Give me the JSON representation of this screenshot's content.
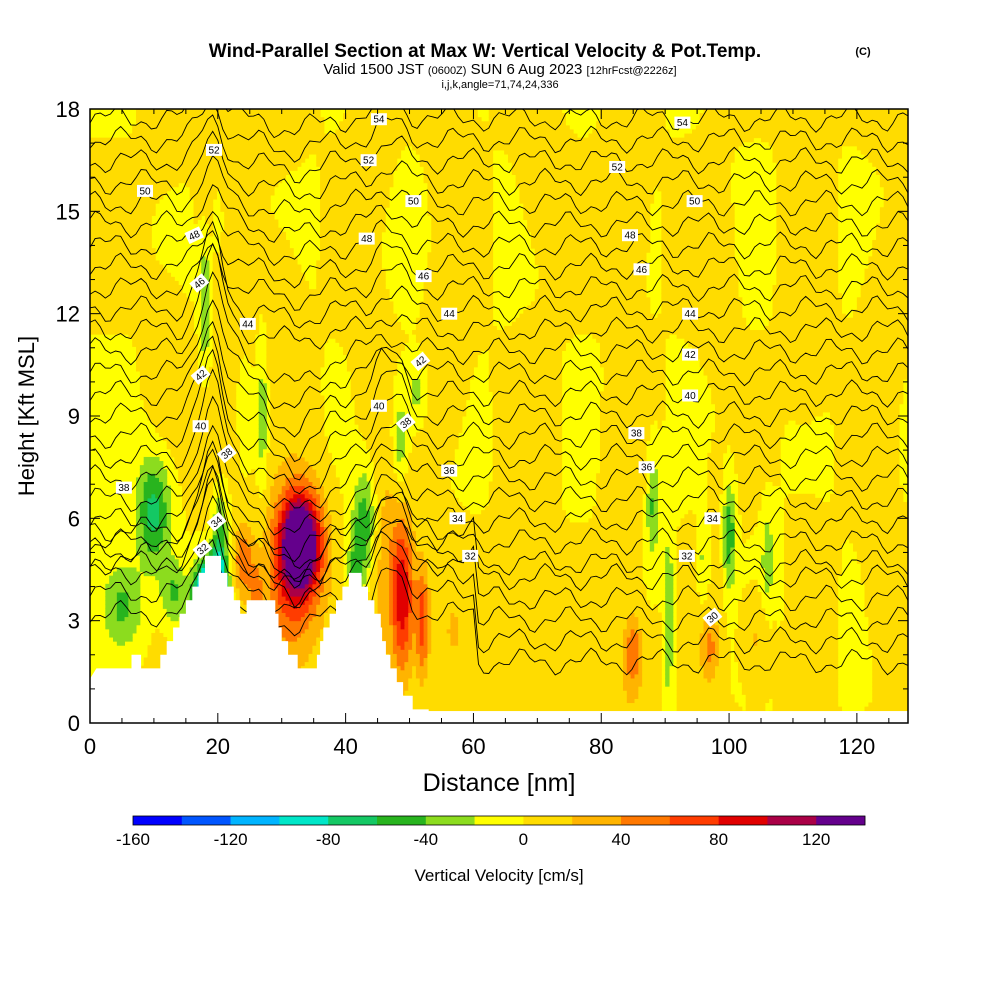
{
  "chart_data": {
    "type": "heatmap",
    "title": "Wind-Parallel Section at Max W: Vertical Velocity & Pot.Temp.",
    "title_mark": "(C)",
    "subtitle_main": "Valid 1500 JST",
    "subtitle_z": "(0600Z)",
    "subtitle_date": "SUN 6 Aug 2023",
    "subtitle_fcst": "[12hrFcst@2226z]",
    "subtitle2": "i,j,k,angle=71,74,24,336",
    "xlabel": "Distance [nm]",
    "ylabel": "Height [Kft MSL]",
    "xlim": [
      0,
      128
    ],
    "ylim": [
      0,
      18
    ],
    "x_ticks": [
      "0",
      "20",
      "40",
      "60",
      "80",
      "100",
      "120"
    ],
    "y_ticks": [
      "0",
      "3",
      "6",
      "9",
      "12",
      "15",
      "18"
    ],
    "colorbar": {
      "label": "Vertical Velocity [cm/s]",
      "range": [
        -160,
        140
      ],
      "tick_labels": [
        "-160",
        "-120",
        "-80",
        "-40",
        "0",
        "40",
        "80",
        "120"
      ],
      "colors": [
        "#0000ff",
        "#0055ff",
        "#00b4ff",
        "#00e6c8",
        "#14c864",
        "#28b41e",
        "#8cdc1e",
        "#ffff00",
        "#ffdc00",
        "#ffb400",
        "#ff7800",
        "#ff3c00",
        "#e10000",
        "#aa0046",
        "#64008c"
      ]
    },
    "theta_labels": [
      {
        "text": "54",
        "x": 45.2,
        "y": 17.7,
        "rot": 0
      },
      {
        "text": "54",
        "x": 92.7,
        "y": 17.6,
        "rot": 0
      },
      {
        "text": "52",
        "x": 19.4,
        "y": 16.8,
        "rot": 0
      },
      {
        "text": "52",
        "x": 43.6,
        "y": 16.5,
        "rot": 0
      },
      {
        "text": "52",
        "x": 82.5,
        "y": 16.3,
        "rot": 0
      },
      {
        "text": "50",
        "x": 8.6,
        "y": 15.6,
        "rot": 0
      },
      {
        "text": "50",
        "x": 50.6,
        "y": 15.3,
        "rot": 0
      },
      {
        "text": "50",
        "x": 94.6,
        "y": 15.3,
        "rot": 0
      },
      {
        "text": "48",
        "x": 16.3,
        "y": 14.3,
        "rot": -25
      },
      {
        "text": "48",
        "x": 43.3,
        "y": 14.2,
        "rot": 0
      },
      {
        "text": "48",
        "x": 84.5,
        "y": 14.3,
        "rot": 0
      },
      {
        "text": "46",
        "x": 17.1,
        "y": 12.9,
        "rot": -40
      },
      {
        "text": "46",
        "x": 52.2,
        "y": 13.1,
        "rot": 0
      },
      {
        "text": "46",
        "x": 86.3,
        "y": 13.3,
        "rot": 0
      },
      {
        "text": "44",
        "x": 24.7,
        "y": 11.7,
        "rot": 0
      },
      {
        "text": "44",
        "x": 56.2,
        "y": 12.0,
        "rot": 0
      },
      {
        "text": "44",
        "x": 93.9,
        "y": 12.0,
        "rot": 0
      },
      {
        "text": "42",
        "x": 17.3,
        "y": 10.2,
        "rot": -40
      },
      {
        "text": "42",
        "x": 51.7,
        "y": 10.6,
        "rot": -40
      },
      {
        "text": "42",
        "x": 93.9,
        "y": 10.8,
        "rot": 0
      },
      {
        "text": "40",
        "x": 17.3,
        "y": 8.7,
        "rot": 0
      },
      {
        "text": "40",
        "x": 45.2,
        "y": 9.3,
        "rot": 0
      },
      {
        "text": "40",
        "x": 93.9,
        "y": 9.6,
        "rot": 0
      },
      {
        "text": "38",
        "x": 5.3,
        "y": 6.9,
        "rot": 0
      },
      {
        "text": "38",
        "x": 21.4,
        "y": 7.9,
        "rot": -40
      },
      {
        "text": "38",
        "x": 49.4,
        "y": 8.8,
        "rot": -40
      },
      {
        "text": "38",
        "x": 85.5,
        "y": 8.5,
        "rot": 0
      },
      {
        "text": "36",
        "x": 56.2,
        "y": 7.4,
        "rot": 0
      },
      {
        "text": "36",
        "x": 87.1,
        "y": 7.5,
        "rot": 0
      },
      {
        "text": "34",
        "x": 19.8,
        "y": 5.9,
        "rot": -40
      },
      {
        "text": "34",
        "x": 57.5,
        "y": 6.0,
        "rot": 0
      },
      {
        "text": "34",
        "x": 97.4,
        "y": 6.0,
        "rot": 0
      },
      {
        "text": "32",
        "x": 17.6,
        "y": 5.1,
        "rot": -40
      },
      {
        "text": "32",
        "x": 59.5,
        "y": 4.9,
        "rot": 0
      },
      {
        "text": "32",
        "x": 93.4,
        "y": 4.9,
        "rot": 0
      },
      {
        "text": "30",
        "x": 97.4,
        "y": 3.1,
        "rot": -40
      }
    ]
  }
}
